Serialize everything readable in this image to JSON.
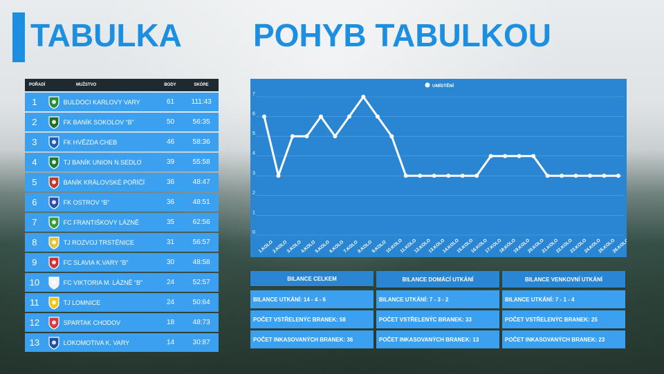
{
  "titles": {
    "left": "TABULKA",
    "right": "POHYB TABULKOU"
  },
  "table": {
    "headers": {
      "rank": "POŘADÍ",
      "team": "MUŽSTVO",
      "points": "BODY",
      "score": "SKÓRE"
    },
    "rows": [
      {
        "rank": "1",
        "team": "BULDOCI KARLOVY VARY",
        "points": "61",
        "score": "111:43",
        "logo_icon": "buldoci-crest-icon",
        "logo_color": "#2b8a3e"
      },
      {
        "rank": "2",
        "team": "FK BANÍK SOKOLOV “B”",
        "points": "50",
        "score": "56:35",
        "logo_icon": "banik-sokolov-crest-icon",
        "logo_color": "#1f6f2a"
      },
      {
        "rank": "3",
        "team": "FK HVĚZDA CHEB",
        "points": "46",
        "score": "58:36",
        "logo_icon": "hvezda-cheb-crest-icon",
        "logo_color": "#1e5fb4"
      },
      {
        "rank": "4",
        "team": "TJ BANÍK UNION N.SEDLO",
        "points": "39",
        "score": "55:58",
        "logo_icon": "banik-union-crest-icon",
        "logo_color": "#1d7a2f"
      },
      {
        "rank": "5",
        "team": "BANÍK KRÁLOVSKÉ POŘÍČÍ",
        "points": "36",
        "score": "48:47",
        "logo_icon": "banik-kralovske-crest-icon",
        "logo_color": "#c0392b"
      },
      {
        "rank": "6",
        "team": "FK OSTROV “B”",
        "points": "36",
        "score": "48:51",
        "logo_icon": "fk-ostrov-crest-icon",
        "logo_color": "#2e4fa8"
      },
      {
        "rank": "7",
        "team": "FC FRANTIŠKOVY LÁZNĚ",
        "points": "35",
        "score": "62:56",
        "logo_icon": "frantiskovy-lazne-crest-icon",
        "logo_color": "#3a9b3a"
      },
      {
        "rank": "8",
        "team": "TJ ROZVOJ TRSTĚNICE",
        "points": "31",
        "score": "56:57",
        "logo_icon": "rozvoj-trstenice-crest-icon",
        "logo_color": "#e3c23a"
      },
      {
        "rank": "9",
        "team": "FC SLAVIA K.VARY “B”",
        "points": "30",
        "score": "48:58",
        "logo_icon": "slavia-kvary-crest-icon",
        "logo_color": "#d0302f"
      },
      {
        "rank": "10",
        "team": "FC VIKTORIA M. LÁZNĚ “B”",
        "points": "24",
        "score": "52:57",
        "logo_icon": "viktoria-mlazne-crest-icon",
        "logo_color": "#f2f2f2"
      },
      {
        "rank": "11",
        "team": "TJ LOMNICE",
        "points": "24",
        "score": "50:64",
        "logo_icon": "tj-lomnice-crest-icon",
        "logo_color": "#f0c419"
      },
      {
        "rank": "12",
        "team": "SPARTAK CHODOV",
        "points": "18",
        "score": "48:73",
        "logo_icon": "spartak-chodov-crest-icon",
        "logo_color": "#d63a3a"
      },
      {
        "rank": "13",
        "team": "LOKOMOTIVA K. VARY",
        "points": "14",
        "score": "30:87",
        "logo_icon": "lokomotiva-kvary-crest-icon",
        "logo_color": "#1e4fa0"
      }
    ]
  },
  "chart_data": {
    "type": "line",
    "title": "",
    "legend": "UMÍSTĚNÍ",
    "legend_position": "top-center",
    "grid": true,
    "ylim": [
      0,
      7
    ],
    "yticks": [
      "0",
      "1",
      "2",
      "3",
      "4",
      "5",
      "6",
      "7"
    ],
    "categories": [
      "1.KOLO",
      "2.KOLO",
      "3.KOLO",
      "4.KOLO",
      "5.KOLO",
      "6.KOLO",
      "7.KOLO",
      "8.KOLO",
      "9.KOLO",
      "10.KOLO",
      "11.KOLO",
      "12.KOLO",
      "13.KOLO",
      "14.KOLO",
      "15.KOLO",
      "16.KOLO",
      "17.KOLO",
      "18.KOLO",
      "19.KOLO",
      "20.KOLO",
      "21.KOLO",
      "22.KOLO",
      "23.KOLO",
      "24.KOLO",
      "25.KOLO",
      "26.KOLO"
    ],
    "series": [
      {
        "name": "UMÍSTĚNÍ",
        "values": [
          6,
          3,
          5,
          5,
          6,
          5,
          6,
          7,
          6,
          5,
          3,
          3,
          3,
          3,
          3,
          3,
          4,
          4,
          4,
          4,
          3,
          3,
          3,
          3,
          3,
          3
        ]
      }
    ],
    "colors": {
      "background": "#2a86d2",
      "line": "#ffffff",
      "grid": "#5aa6e3"
    }
  },
  "stats": [
    {
      "title": "BILANCE CELKEM",
      "lines": [
        "BILANCE UTKÁNÍ: 14 - 4 - 6",
        "POČET VSTŘELENÝC BRANEK: 58",
        "POČET INKASOVANÝCH BRANEK: 36"
      ]
    },
    {
      "title": "BILANCE DOMÁCÍ UTKÁNÍ",
      "lines": [
        "BILANCE UTKÁNÍ: 7 - 3 - 2",
        "POČET VSTŘELENÝC BRANEK: 33",
        "POČET INKASOVANÝCH BRANEK: 13"
      ]
    },
    {
      "title": "BILANCE VENKOVNÍ UTKÁNÍ",
      "lines": [
        "BILANCE UTKÁNÍ: 7 - 1 - 4",
        "POČET VSTŘELENÝC BRANEK: 25",
        "POČET INKASOVANÝCH BRANEK: 23"
      ]
    }
  ],
  "colors": {
    "accent": "#1d8fe0",
    "row": "#3aa0ef",
    "panel": "#2a86d2",
    "header": "#1e2a30"
  }
}
